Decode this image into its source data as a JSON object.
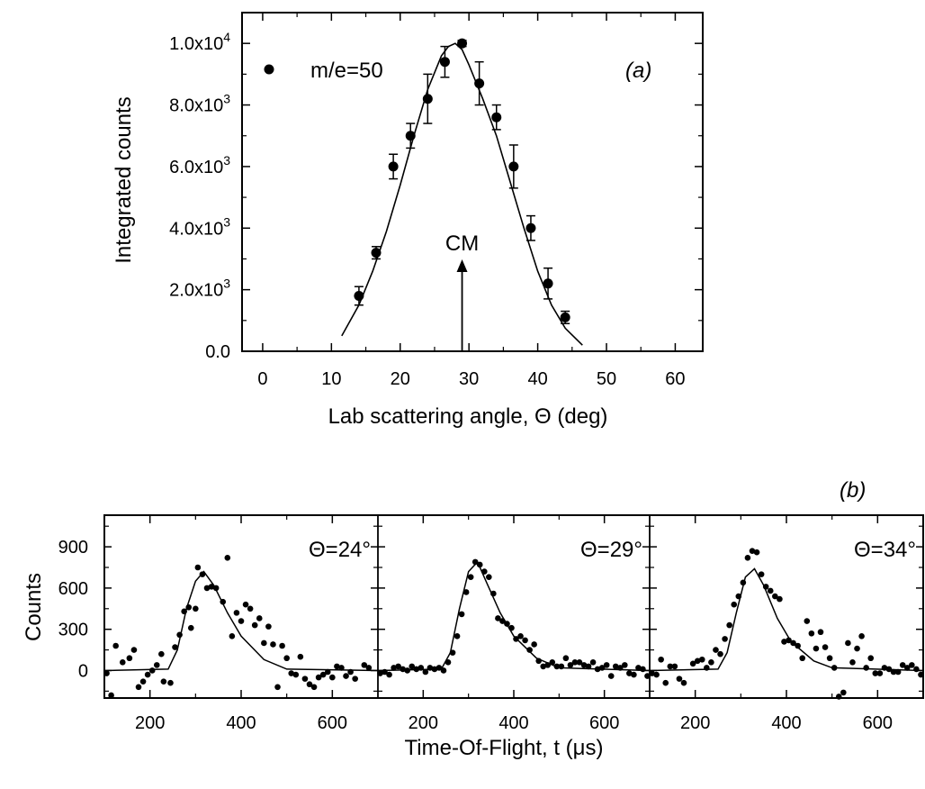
{
  "figure": {
    "panel_b_label": "(b)"
  },
  "chart_data": [
    {
      "type": "scatter",
      "panel_label": "(a)",
      "xlabel": "Lab scattering angle, Θ (deg)",
      "ylabel": "Integrated counts",
      "xlim": [
        -3,
        64
      ],
      "ylim": [
        0,
        11000
      ],
      "x_ticks": [
        "0",
        "10",
        "20",
        "30",
        "40",
        "50",
        "60"
      ],
      "y_ticks": [
        "0.0",
        "2.0x10",
        "4.0x10",
        "6.0x10",
        "8.0x10",
        "1.0x10"
      ],
      "y_tick_exponents": [
        "",
        "3",
        "3",
        "3",
        "3",
        "4"
      ],
      "legend": "m/e=50",
      "annotation": {
        "text": "CM",
        "x": 29
      },
      "series": [
        {
          "name": "m/e=50",
          "points": [
            {
              "x": 14.0,
              "y": 1800,
              "err": 300
            },
            {
              "x": 16.5,
              "y": 3200,
              "err": 200
            },
            {
              "x": 19.0,
              "y": 6000,
              "err": 400
            },
            {
              "x": 21.5,
              "y": 7000,
              "err": 400
            },
            {
              "x": 24.0,
              "y": 8200,
              "err": 800
            },
            {
              "x": 26.5,
              "y": 9400,
              "err": 500
            },
            {
              "x": 29.0,
              "y": 10000,
              "err": 100
            },
            {
              "x": 31.5,
              "y": 8700,
              "err": 700
            },
            {
              "x": 34.0,
              "y": 7600,
              "err": 400
            },
            {
              "x": 36.5,
              "y": 6000,
              "err": 700
            },
            {
              "x": 39.0,
              "y": 4000,
              "err": 400
            },
            {
              "x": 41.5,
              "y": 2200,
              "err": 500
            },
            {
              "x": 44.0,
              "y": 1100,
              "err": 200
            }
          ]
        },
        {
          "name": "",
          "type": "line",
          "x": [
            11.5,
            14,
            16,
            18,
            20,
            22,
            24,
            26,
            27,
            28,
            29,
            30,
            32,
            34,
            36,
            38,
            40,
            42,
            44,
            46.5
          ],
          "y": [
            500,
            1500,
            2600,
            3900,
            5400,
            7000,
            8500,
            9600,
            9900,
            10000,
            9800,
            9300,
            8200,
            7000,
            5500,
            4000,
            2600,
            1500,
            750,
            200
          ]
        }
      ]
    },
    {
      "type": "scatter",
      "xlabel": "Time-Of-Flight, t (μs)",
      "ylabel": "Counts",
      "xlim": [
        100,
        700
      ],
      "ylim": [
        -200,
        1130
      ],
      "x_ticks": [
        "200",
        "400",
        "600"
      ],
      "y_ticks": [
        "0",
        "300",
        "600",
        "900"
      ],
      "panels": [
        {
          "label": "Θ=24°",
          "points": [
            [
              105,
              -20
            ],
            [
              115,
              -180
            ],
            [
              125,
              180
            ],
            [
              140,
              60
            ],
            [
              155,
              90
            ],
            [
              165,
              150
            ],
            [
              175,
              -120
            ],
            [
              185,
              -80
            ],
            [
              195,
              -30
            ],
            [
              205,
              0
            ],
            [
              215,
              40
            ],
            [
              225,
              120
            ],
            [
              230,
              -80
            ],
            [
              245,
              -90
            ],
            [
              255,
              170
            ],
            [
              265,
              260
            ],
            [
              275,
              430
            ],
            [
              285,
              460
            ],
            [
              290,
              310
            ],
            [
              300,
              450
            ],
            [
              305,
              750
            ],
            [
              315,
              700
            ],
            [
              325,
              600
            ],
            [
              335,
              610
            ],
            [
              345,
              600
            ],
            [
              360,
              500
            ],
            [
              370,
              820
            ],
            [
              380,
              250
            ],
            [
              390,
              420
            ],
            [
              400,
              360
            ],
            [
              410,
              480
            ],
            [
              420,
              450
            ],
            [
              430,
              330
            ],
            [
              440,
              380
            ],
            [
              450,
              200
            ],
            [
              460,
              320
            ],
            [
              470,
              190
            ],
            [
              480,
              -120
            ],
            [
              490,
              180
            ],
            [
              500,
              90
            ],
            [
              510,
              -20
            ],
            [
              520,
              -30
            ],
            [
              530,
              100
            ],
            [
              540,
              -60
            ],
            [
              550,
              -100
            ],
            [
              560,
              -120
            ],
            [
              570,
              -50
            ],
            [
              580,
              -30
            ],
            [
              590,
              -10
            ],
            [
              600,
              -50
            ],
            [
              610,
              30
            ],
            [
              620,
              20
            ],
            [
              630,
              -40
            ],
            [
              640,
              -10
            ],
            [
              650,
              -60
            ],
            [
              660,
              -230
            ],
            [
              670,
              40
            ],
            [
              680,
              20
            ]
          ],
          "fit_x": [
            100,
            240,
            260,
            280,
            300,
            318,
            340,
            370,
            400,
            450,
            500,
            700
          ],
          "fit_y": [
            0,
            10,
            150,
            450,
            650,
            720,
            620,
            420,
            250,
            80,
            10,
            0
          ]
        },
        {
          "label": "Θ=29°",
          "points": [
            [
              105,
              -20
            ],
            [
              115,
              -10
            ],
            [
              125,
              -30
            ],
            [
              135,
              20
            ],
            [
              145,
              30
            ],
            [
              155,
              10
            ],
            [
              165,
              0
            ],
            [
              175,
              30
            ],
            [
              185,
              10
            ],
            [
              195,
              20
            ],
            [
              205,
              -10
            ],
            [
              215,
              20
            ],
            [
              225,
              10
            ],
            [
              235,
              20
            ],
            [
              245,
              0
            ],
            [
              255,
              60
            ],
            [
              265,
              130
            ],
            [
              275,
              250
            ],
            [
              285,
              410
            ],
            [
              295,
              570
            ],
            [
              305,
              680
            ],
            [
              315,
              790
            ],
            [
              325,
              770
            ],
            [
              335,
              720
            ],
            [
              345,
              680
            ],
            [
              355,
              560
            ],
            [
              365,
              380
            ],
            [
              375,
              360
            ],
            [
              385,
              340
            ],
            [
              395,
              310
            ],
            [
              405,
              230
            ],
            [
              415,
              250
            ],
            [
              425,
              220
            ],
            [
              435,
              150
            ],
            [
              445,
              190
            ],
            [
              455,
              70
            ],
            [
              465,
              30
            ],
            [
              475,
              40
            ],
            [
              485,
              60
            ],
            [
              495,
              30
            ],
            [
              505,
              30
            ],
            [
              515,
              90
            ],
            [
              525,
              40
            ],
            [
              535,
              60
            ],
            [
              545,
              60
            ],
            [
              555,
              40
            ],
            [
              565,
              30
            ],
            [
              575,
              60
            ],
            [
              585,
              10
            ],
            [
              595,
              20
            ],
            [
              605,
              40
            ],
            [
              615,
              -40
            ],
            [
              625,
              30
            ],
            [
              635,
              20
            ],
            [
              645,
              40
            ],
            [
              655,
              -20
            ],
            [
              665,
              -30
            ],
            [
              675,
              20
            ],
            [
              685,
              10
            ],
            [
              695,
              -40
            ]
          ],
          "fit_x": [
            100,
            240,
            260,
            280,
            300,
            320,
            340,
            370,
            400,
            450,
            500,
            700
          ],
          "fit_y": [
            0,
            10,
            130,
            450,
            720,
            790,
            640,
            420,
            250,
            90,
            20,
            0
          ]
        },
        {
          "label": "Θ=34°",
          "points": [
            [
              105,
              -20
            ],
            [
              115,
              -30
            ],
            [
              125,
              80
            ],
            [
              135,
              -90
            ],
            [
              145,
              30
            ],
            [
              155,
              30
            ],
            [
              165,
              -60
            ],
            [
              175,
              -90
            ],
            [
              185,
              -230
            ],
            [
              195,
              50
            ],
            [
              205,
              70
            ],
            [
              215,
              80
            ],
            [
              225,
              20
            ],
            [
              235,
              60
            ],
            [
              245,
              150
            ],
            [
              255,
              120
            ],
            [
              265,
              230
            ],
            [
              275,
              330
            ],
            [
              285,
              480
            ],
            [
              295,
              540
            ],
            [
              305,
              640
            ],
            [
              315,
              820
            ],
            [
              325,
              870
            ],
            [
              335,
              860
            ],
            [
              345,
              700
            ],
            [
              355,
              610
            ],
            [
              365,
              580
            ],
            [
              375,
              540
            ],
            [
              385,
              520
            ],
            [
              395,
              210
            ],
            [
              405,
              220
            ],
            [
              415,
              200
            ],
            [
              425,
              180
            ],
            [
              435,
              90
            ],
            [
              445,
              360
            ],
            [
              455,
              270
            ],
            [
              465,
              160
            ],
            [
              475,
              280
            ],
            [
              485,
              170
            ],
            [
              495,
              90
            ],
            [
              505,
              20
            ],
            [
              515,
              -190
            ],
            [
              525,
              -160
            ],
            [
              535,
              200
            ],
            [
              545,
              60
            ],
            [
              555,
              160
            ],
            [
              565,
              250
            ],
            [
              575,
              20
            ],
            [
              585,
              90
            ],
            [
              595,
              -20
            ],
            [
              605,
              -20
            ],
            [
              615,
              20
            ],
            [
              625,
              10
            ],
            [
              635,
              -10
            ],
            [
              645,
              -10
            ],
            [
              655,
              40
            ],
            [
              665,
              20
            ],
            [
              675,
              40
            ],
            [
              685,
              10
            ],
            [
              695,
              -30
            ]
          ],
          "fit_x": [
            100,
            250,
            270,
            290,
            310,
            330,
            350,
            380,
            410,
            460,
            500,
            700
          ],
          "fit_y": [
            0,
            10,
            130,
            420,
            680,
            740,
            620,
            380,
            210,
            70,
            20,
            0
          ]
        }
      ]
    }
  ]
}
